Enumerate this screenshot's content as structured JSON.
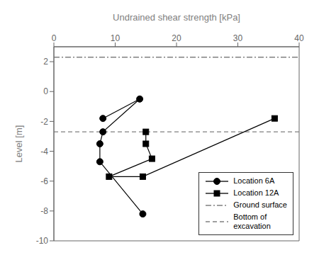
{
  "chart_data": {
    "type": "line",
    "xlabel": "Undrained shear strength [kPa]",
    "ylabel": "Level [m]",
    "xlim": [
      0,
      40
    ],
    "ylim": [
      -10,
      3
    ],
    "xticks": [
      0,
      10,
      20,
      30,
      40
    ],
    "yticks": [
      -10,
      -8,
      -6,
      -4,
      -2,
      0,
      2
    ],
    "grid": false,
    "legend": "lower right",
    "series": [
      {
        "name": "Location 6A",
        "color": "#000000",
        "marker": "circle",
        "line_style": "solid",
        "x": [
          8.0,
          14.0,
          8.0,
          7.5,
          7.5,
          14.5
        ],
        "values": [
          -1.8,
          -0.5,
          -2.7,
          -3.5,
          -4.7,
          -8.2
        ]
      },
      {
        "name": "Location 12A",
        "color": "#000000",
        "marker": "square",
        "line_style": "solid",
        "x": [
          15.0,
          15.0,
          16.0,
          9.0,
          14.5,
          36.0
        ],
        "values": [
          -2.7,
          -3.5,
          -4.5,
          -5.7,
          -5.7,
          -1.8
        ]
      }
    ],
    "hlines": [
      {
        "name": "Ground surface",
        "value": 2.3,
        "color": "#808080",
        "line_style": "dashdot"
      },
      {
        "name": "Bottom of\nexcavation",
        "value": -2.7,
        "color": "#808080",
        "line_style": "dashed"
      }
    ]
  }
}
